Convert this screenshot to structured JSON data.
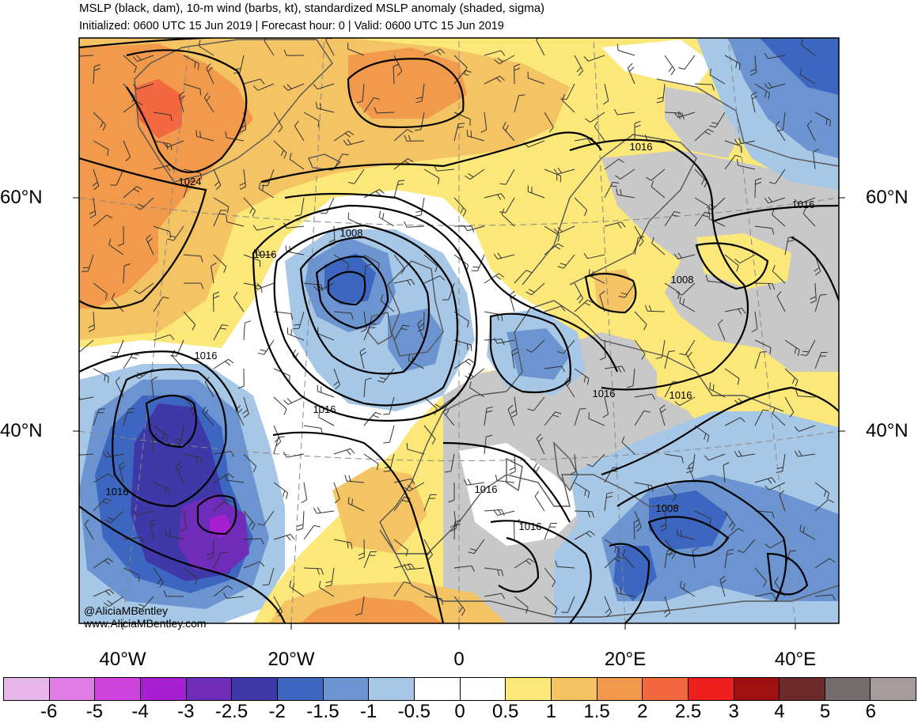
{
  "title": "MSLP (black, dam), 10-m wind (barbs, kt), standardized MSLP anomaly (shaded, sigma)",
  "subtitle": "Initialized: 0600 UTC 15 Jun 2019 | Forecast hour: 0 | Valid: 0600 UTC 15 Jun 2019",
  "credits": {
    "handle": "@AliciaMBentley",
    "website": "www.AliciaMBentley.com"
  },
  "axes": {
    "lon_labels": [
      "40°W",
      "20°W",
      "0",
      "20°E",
      "40°E"
    ],
    "lat_labels_left": [
      "60°N",
      "40°N"
    ],
    "lat_labels_right": [
      "60°N",
      "40°N"
    ]
  },
  "isobar_labels": [
    "1016",
    "1024",
    "1008",
    "1016",
    "1016",
    "1016",
    "1016",
    "1008",
    "1016",
    "1016",
    "1016",
    "1016",
    "1016",
    "1008"
  ],
  "colorbar": {
    "labels": [
      "-6",
      "-5",
      "-4",
      "-3",
      "-2.5",
      "-2",
      "-1.5",
      "-1",
      "-0.5",
      "0",
      "0.5",
      "1",
      "1.5",
      "2",
      "2.5",
      "3",
      "4",
      "5",
      "6"
    ],
    "colors": [
      "#e8b7ea",
      "#e07ce6",
      "#cf44dd",
      "#a61fd0",
      "#6e2cb8",
      "#3f38a8",
      "#3c66c0",
      "#6b94d0",
      "#a6c7e6",
      "#ffffff",
      "#ffffff",
      "#fbe878",
      "#f4c464",
      "#f29a4c",
      "#f46840",
      "#ee1f1f",
      "#a01010",
      "#6e2a2a",
      "#746c6c",
      "#a79c9c"
    ]
  },
  "colors": {
    "ocean_neutral": "#ffffff",
    "land_neutral": "#c8c8c8",
    "positive_low": "#fbe878",
    "positive_mid": "#f4c464",
    "positive_high": "#f29a4c",
    "positive_max": "#f46840",
    "negative_low": "#a6c7e6",
    "negative_mid": "#6b94d0",
    "negative_high": "#3c66c0",
    "negative_max": "#3f38a8"
  }
}
